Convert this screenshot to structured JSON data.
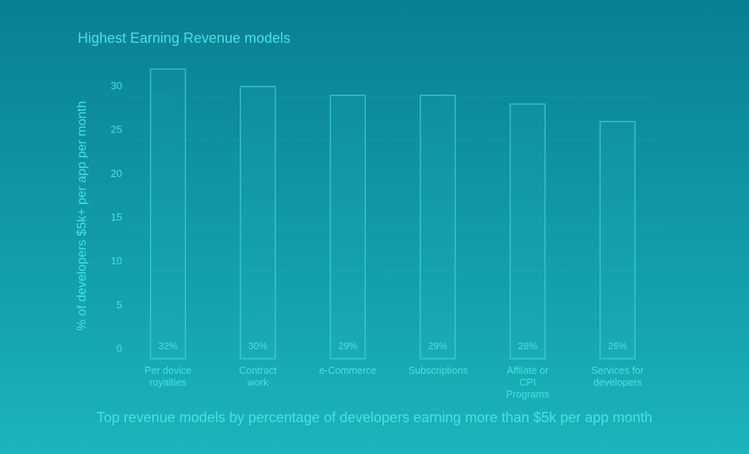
{
  "chart_data": {
    "type": "bar",
    "title": "Highest Earning Revenue models",
    "subtitle": "Top revenue models by percentage of developers earning more than $5k per app month",
    "y_label": "% of developers $5k+ per app per month",
    "categories": [
      "Per device royalties",
      "Contract work",
      "e-Commerce",
      "Subscriptions",
      "Affilate or CPI Programs",
      "Services for developers"
    ],
    "values": [
      32,
      30,
      29,
      29,
      28,
      26
    ],
    "value_labels": [
      "32%",
      "30%",
      "29%",
      "29%",
      "28%",
      "26%"
    ],
    "color": "#3fd8d8",
    "ylim": [
      0,
      32
    ],
    "yticks": [
      0,
      5,
      10,
      15,
      20,
      25,
      30
    ],
    "grid": true
  }
}
